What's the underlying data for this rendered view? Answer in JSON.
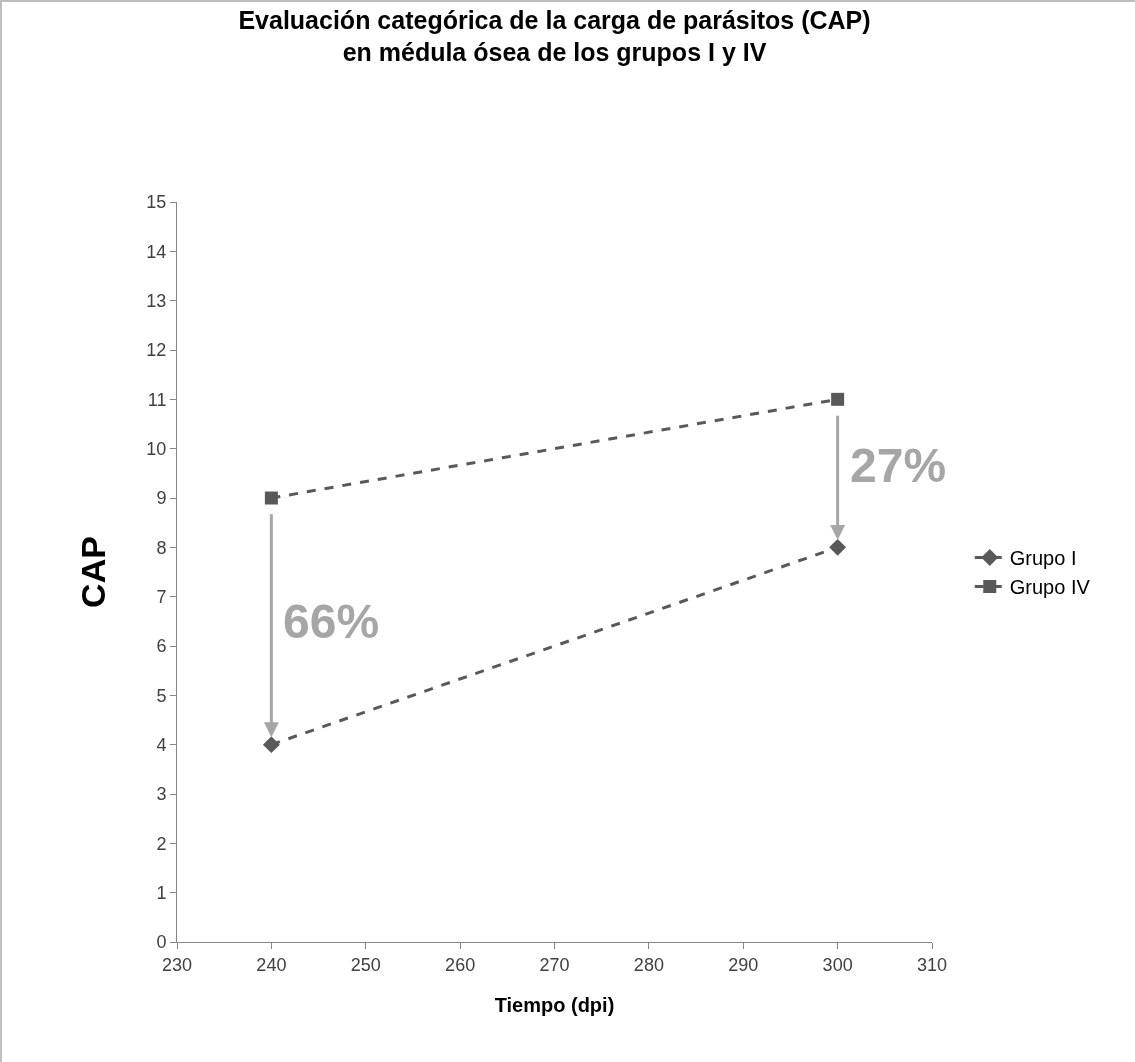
{
  "chart_data": {
    "type": "line",
    "title": "Evaluación categórica de la carga de parásitos (CAP)\nen médula ósea de los grupos I y IV",
    "xlabel": "Tiempo (dpi)",
    "ylabel": "CAP",
    "x": [
      240,
      300
    ],
    "series": [
      {
        "name": "Grupo I",
        "color": "#595959",
        "values": [
          4,
          8
        ],
        "marker": "diamond"
      },
      {
        "name": "Grupo IV",
        "color": "#595959",
        "values": [
          9,
          11
        ],
        "marker": "square"
      }
    ],
    "xlim": [
      230,
      310
    ],
    "xticks": [
      230,
      240,
      250,
      260,
      270,
      280,
      290,
      300,
      310
    ],
    "ylim": [
      0,
      15
    ],
    "yticks": [
      0,
      1,
      2,
      3,
      4,
      5,
      6,
      7,
      8,
      9,
      10,
      11,
      12,
      13,
      14,
      15
    ],
    "annotations": [
      "66%",
      "27%"
    ],
    "grid": false,
    "legend": "right",
    "line_style": "dashed"
  }
}
